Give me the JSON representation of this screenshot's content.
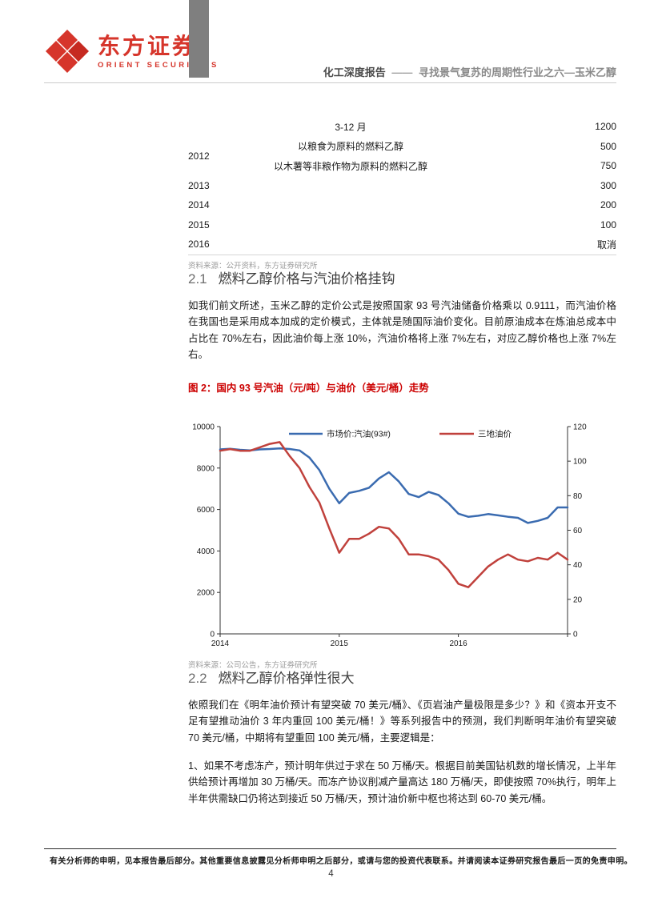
{
  "header": {
    "logo_icon": "orient-diamond-mark",
    "brand_cn": "东方证券",
    "brand_en": "ORIENT SECURITIES",
    "doc_type": "化工深度报告",
    "dash": "——",
    "doc_title": "寻找景气复苏的周期性行业之六—玉米乙醇"
  },
  "subsidy_table": {
    "rows": [
      {
        "year": "",
        "desc": "3-12 月",
        "value": "1200"
      },
      {
        "year": "2012",
        "year_rowspan": 2,
        "desc": "以粮食为原料的燃料乙醇",
        "value": "500"
      },
      {
        "year": null,
        "desc": "以木薯等非粮作物为原料的燃料乙醇",
        "value": "750"
      },
      {
        "year": "2013",
        "desc": "",
        "value": "300"
      },
      {
        "year": "2014",
        "desc": "",
        "value": "200"
      },
      {
        "year": "2015",
        "desc": "",
        "value": "100"
      },
      {
        "year": "2016",
        "desc": "",
        "value": "取消"
      }
    ],
    "source": "资料来源：公开资料，东方证券研究所"
  },
  "section_2_1": {
    "number": "2.1",
    "title": "燃料乙醇价格与汽油价格挂钩",
    "body": "如我们前文所述，玉米乙醇的定价公式是按照国家 93 号汽油储备价格乘以 0.9111，而汽油价格在我国也是采用成本加成的定价模式，主体就是随国际油价变化。目前原油成本在炼油总成本中占比在 70%左右，因此油价每上涨 10%，汽油价格将上涨 7%左右，对应乙醇价格也上涨 7%左右。"
  },
  "figure": {
    "caption": "图 2：国内 93 号汽油（元/吨）与油价（美元/桶）走势",
    "source": "资料来源：公司公告，东方证券研究所"
  },
  "chart_data": {
    "type": "line",
    "title": "国内 93 号汽油（元/吨）与油价（美元/桶）走势",
    "x_start": "2014-01",
    "x_end": "2016-12",
    "x_count": 36,
    "x_tick_labels": [
      "2014",
      "2015",
      "2016"
    ],
    "x_tick_positions": [
      0,
      12,
      24
    ],
    "left_axis": {
      "min": 0,
      "max": 10000,
      "step": 2000
    },
    "right_axis": {
      "min": 0,
      "max": 120,
      "step": 20
    },
    "grid": false,
    "legend_position": "top-center",
    "series": [
      {
        "name": "市场价:汽油(93#)",
        "axis": "left",
        "color": "#3a6bb0",
        "values": [
          8900,
          8930,
          8880,
          8850,
          8900,
          8920,
          8950,
          8920,
          8850,
          8500,
          7900,
          7000,
          6300,
          6800,
          6900,
          7050,
          7500,
          7800,
          7350,
          6750,
          6600,
          6850,
          6700,
          6300,
          5800,
          5650,
          5700,
          5780,
          5720,
          5650,
          5600,
          5350,
          5450,
          5600,
          6100,
          6100
        ]
      },
      {
        "name": "三地油价",
        "axis": "right",
        "color": "#c0413c",
        "values": [
          106,
          107,
          106,
          106,
          108,
          110,
          111,
          103,
          96,
          85,
          76,
          61,
          47,
          55,
          55,
          58,
          62,
          61,
          55,
          46,
          46,
          45,
          43,
          37,
          29,
          27,
          33,
          39,
          43,
          46,
          43,
          42,
          44,
          43,
          47,
          43
        ]
      }
    ]
  },
  "section_2_2": {
    "number": "2.2",
    "title": "燃料乙醇价格弹性很大",
    "para1": "依照我们在《明年油价预计有望突破 70 美元/桶》、《页岩油产量极限是多少？》和《资本开支不足有望推动油价 3 年内重回 100 美元/桶！》等系列报告中的预测，我们判断明年油价有望突破 70 美元/桶，中期将有望重回 100 美元/桶，主要逻辑是：",
    "para2": "1、如果不考虑冻产，预计明年供过于求在 50 万桶/天。根据目前美国钻机数的增长情况，上半年供给预计再增加 30 万桶/天。而冻产协议削减产量高达 180 万桶/天，即使按照 70%执行，明年上半年供需缺口仍将达到接近 50 万桶/天，预计油价新中枢也将达到 60-70 美元/桶。"
  },
  "footer": {
    "disclaimer": "有关分析师的申明，见本报告最后部分。其他重要信息披露见分析师申明之后部分，或请与您的投资代表联系。并请阅读本证券研究报告最后一页的免责申明。",
    "page_number": "4"
  }
}
